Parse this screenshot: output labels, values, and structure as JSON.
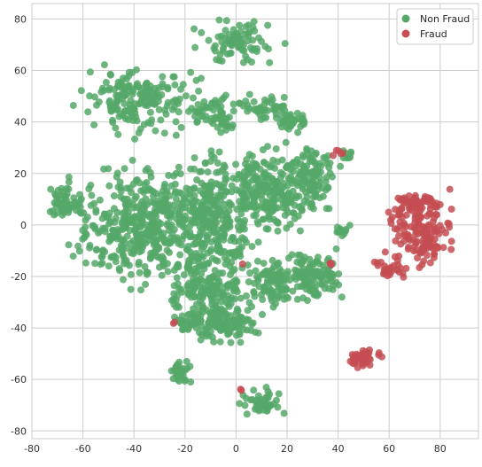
{
  "chart_data": {
    "type": "scatter",
    "title": "",
    "xlabel": "",
    "ylabel": "",
    "xlim": [
      -80,
      95
    ],
    "ylim": [
      -83,
      86
    ],
    "xticks": [
      -80,
      -60,
      -40,
      -20,
      0,
      20,
      40,
      60,
      80
    ],
    "yticks": [
      -80,
      -60,
      -40,
      -20,
      0,
      20,
      40,
      60,
      80
    ],
    "grid": true,
    "legend_position": "top-right",
    "series": [
      {
        "name": "Non Fraud",
        "color": "#55a868",
        "clusters": [
          {
            "cx": 0,
            "cy": 71,
            "rx": 13,
            "ry": 7,
            "n": 80
          },
          {
            "cx": -38,
            "cy": 49,
            "rx": 18,
            "ry": 10,
            "n": 180
          },
          {
            "cx": -8,
            "cy": 43,
            "rx": 7,
            "ry": 6,
            "n": 60
          },
          {
            "cx": 12,
            "cy": 45,
            "rx": 8,
            "ry": 4,
            "n": 45
          },
          {
            "cx": 22,
            "cy": 40,
            "rx": 5,
            "ry": 4,
            "n": 35
          },
          {
            "cx": -68,
            "cy": 8,
            "rx": 6,
            "ry": 5,
            "n": 55
          },
          {
            "cx": -35,
            "cy": 0,
            "rx": 22,
            "ry": 18,
            "n": 450
          },
          {
            "cx": -8,
            "cy": 5,
            "rx": 12,
            "ry": 18,
            "n": 250
          },
          {
            "cx": 12,
            "cy": 12,
            "rx": 12,
            "ry": 14,
            "n": 230
          },
          {
            "cx": 30,
            "cy": 18,
            "rx": 8,
            "ry": 10,
            "n": 110
          },
          {
            "cx": 30,
            "cy": -20,
            "rx": 9,
            "ry": 8,
            "n": 120
          },
          {
            "cx": 14,
            "cy": -22,
            "rx": 7,
            "ry": 9,
            "n": 80
          },
          {
            "cx": -10,
            "cy": -25,
            "rx": 14,
            "ry": 10,
            "n": 160
          },
          {
            "cx": -8,
            "cy": -38,
            "rx": 14,
            "ry": 6,
            "n": 140
          },
          {
            "cx": -22,
            "cy": -57,
            "rx": 3.5,
            "ry": 4,
            "n": 30
          },
          {
            "cx": 10,
            "cy": -69,
            "rx": 6,
            "ry": 4,
            "n": 45
          },
          {
            "cx": 42,
            "cy": -2,
            "rx": 3,
            "ry": 2,
            "n": 12
          },
          {
            "cx": 43,
            "cy": 27,
            "rx": 2,
            "ry": 2,
            "n": 8
          }
        ]
      },
      {
        "name": "Fraud",
        "color": "#c44e52",
        "clusters": [
          {
            "cx": 72,
            "cy": -2,
            "rx": 10,
            "ry": 12,
            "n": 160
          },
          {
            "cx": 70,
            "cy": 9,
            "rx": 7,
            "ry": 3,
            "n": 40
          },
          {
            "cx": 61,
            "cy": -17,
            "rx": 4,
            "ry": 3,
            "n": 25
          },
          {
            "cx": 50,
            "cy": -52,
            "rx": 5,
            "ry": 3,
            "n": 40
          },
          {
            "cx": 40,
            "cy": 28,
            "rx": 1.5,
            "ry": 2,
            "n": 5
          },
          {
            "cx": -24,
            "cy": -38,
            "rx": 0.8,
            "ry": 0.8,
            "n": 2
          },
          {
            "cx": 2,
            "cy": -64,
            "rx": 0.8,
            "ry": 0.8,
            "n": 2
          },
          {
            "cx": 3,
            "cy": -15,
            "rx": 0.8,
            "ry": 0.8,
            "n": 1
          },
          {
            "cx": 37,
            "cy": -15,
            "rx": 1,
            "ry": 1,
            "n": 3
          },
          {
            "cx": 55,
            "cy": -15,
            "rx": 1,
            "ry": 1,
            "n": 3
          }
        ]
      }
    ]
  }
}
